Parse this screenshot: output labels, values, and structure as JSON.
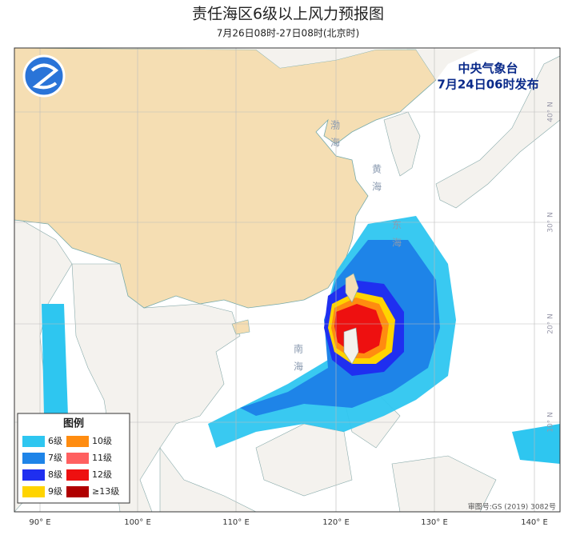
{
  "header": {
    "title": "责任海区6级以上风力预报图",
    "subtitle": "7月26日08时-27日08时(北京时)"
  },
  "issuer": {
    "agency": "中央气象台",
    "issued": "7月24日06时发布"
  },
  "legend": {
    "title": "图例",
    "items": [
      {
        "label": "6级",
        "color": "#2ec6f0"
      },
      {
        "label": "7级",
        "color": "#1e84e8"
      },
      {
        "label": "8级",
        "color": "#1f2ff0"
      },
      {
        "label": "9级",
        "color": "#ffd400"
      },
      {
        "label": "10级",
        "color": "#ff8c10"
      },
      {
        "label": "11级",
        "color": "#ff6060"
      },
      {
        "label": "12级",
        "color": "#ee1010"
      },
      {
        "label": "≥13级",
        "color": "#b00000"
      }
    ]
  },
  "longitude_labels": [
    "90° E",
    "100° E",
    "110° E",
    "120° E",
    "130° E",
    "140° E"
  ],
  "latitude_labels": [
    "40° N",
    "30° N",
    "20° N",
    "10° N"
  ],
  "sea_labels": [
    "渤海",
    "黄海",
    "东海",
    "南海"
  ],
  "map_review": "审图号:GS (2019) 3082号"
}
